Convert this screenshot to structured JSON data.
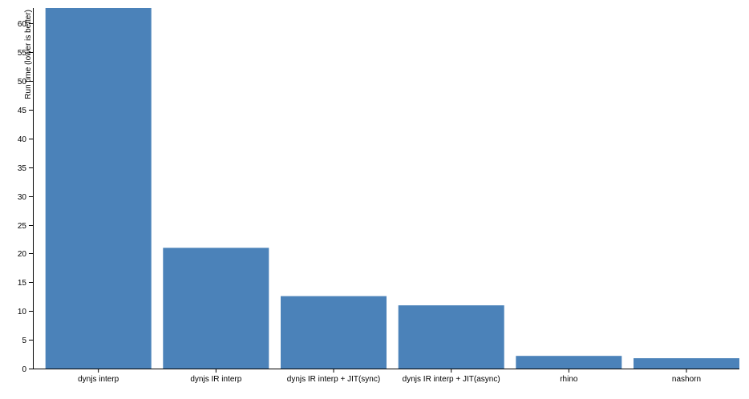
{
  "chart_data": {
    "type": "bar",
    "title": "",
    "xlabel": "",
    "ylabel": "Run time (lower is better)",
    "categories": [
      "dynjs interp",
      "dynjs IR interp",
      "dynjs IR interp + JIT(sync)",
      "dynjs IR interp + JIT(async)",
      "rhino",
      "nashorn"
    ],
    "values": [
      62.7,
      21.0,
      12.6,
      11.0,
      2.2,
      1.8
    ],
    "ylim": [
      0,
      62.7
    ],
    "yticks": [
      "0",
      "5",
      "10",
      "15",
      "20",
      "25",
      "30",
      "35",
      "40",
      "45",
      "50",
      "55",
      "60"
    ],
    "grid": false,
    "legend": "none",
    "colors": {
      "bar": "#4b82b9",
      "axis": "#000000"
    }
  }
}
